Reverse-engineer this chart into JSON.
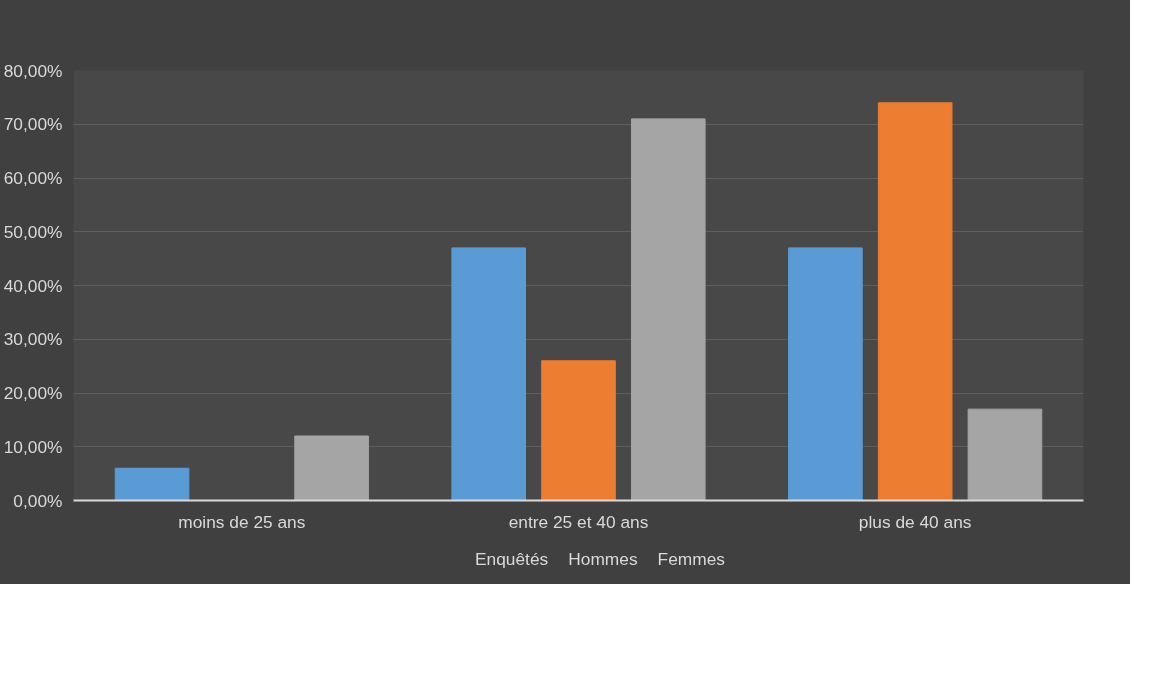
{
  "chart_data": {
    "type": "bar",
    "categories": [
      "moins de 25 ans",
      "entre 25 et 40 ans",
      "plus de 40 ans"
    ],
    "series": [
      {
        "name": "Enquêtés",
        "color": "#5b9bd5",
        "values": [
          6,
          47,
          47
        ]
      },
      {
        "name": "Hommes",
        "color": "#ed7d31",
        "values": [
          0,
          26,
          74
        ]
      },
      {
        "name": "Femmes",
        "color": "#a5a5a5",
        "values": [
          12,
          71,
          17
        ]
      }
    ],
    "ylim": [
      0,
      80
    ],
    "yticks": [
      {
        "value": 0,
        "label": "0,00%"
      },
      {
        "value": 10,
        "label": "10,00%"
      },
      {
        "value": 20,
        "label": "20,00%"
      },
      {
        "value": 30,
        "label": "30,00%"
      },
      {
        "value": 40,
        "label": "40,00%"
      },
      {
        "value": 50,
        "label": "50,00%"
      },
      {
        "value": 60,
        "label": "60,00%"
      },
      {
        "value": 70,
        "label": "70,00%"
      },
      {
        "value": 80,
        "label": "80,00%"
      }
    ],
    "grid": "y",
    "legend": "bottom"
  }
}
